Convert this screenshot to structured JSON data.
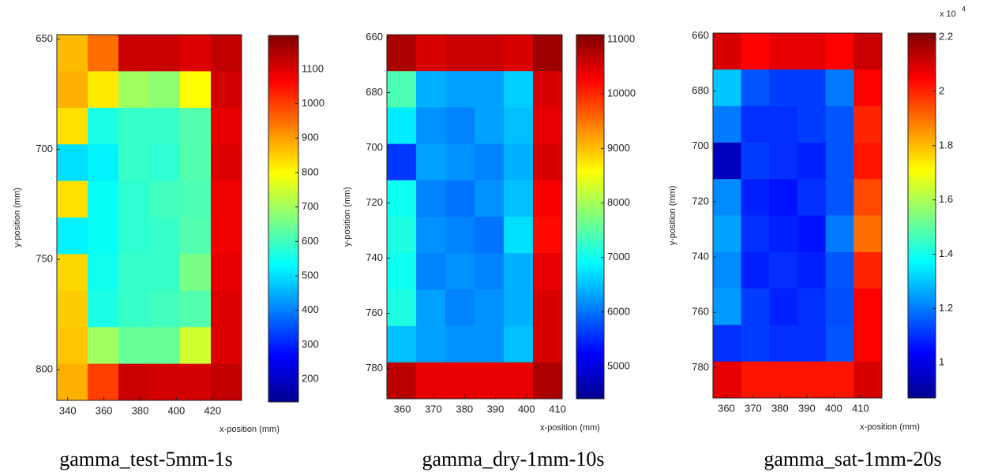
{
  "chart_data": [
    {
      "type": "heatmap",
      "title": "gamma_test-5mm-1s",
      "xlabel": "x-position (mm)",
      "ylabel": "y-position (mm)",
      "colormap": "jet",
      "xlim": [
        334,
        436
      ],
      "ylim": [
        648,
        814
      ],
      "xticks": [
        340,
        360,
        380,
        400,
        420
      ],
      "yticks": [
        650,
        700,
        750,
        800
      ],
      "clim": [
        134,
        1198
      ],
      "cticks": [
        200,
        300,
        400,
        500,
        600,
        700,
        800,
        900,
        1000,
        1100
      ],
      "z": [
        [
          870,
          950,
          1120,
          1120,
          1100,
          1130
        ],
        [
          880,
          820,
          700,
          680,
          800,
          1110
        ],
        [
          830,
          560,
          590,
          590,
          620,
          1090
        ],
        [
          500,
          520,
          590,
          580,
          620,
          1100
        ],
        [
          830,
          540,
          580,
          600,
          610,
          1080
        ],
        [
          520,
          540,
          580,
          590,
          620,
          1080
        ],
        [
          840,
          550,
          590,
          590,
          660,
          1090
        ],
        [
          850,
          560,
          590,
          600,
          620,
          1100
        ],
        [
          860,
          700,
          640,
          640,
          750,
          1100
        ],
        [
          880,
          1000,
          1120,
          1110,
          1110,
          1130
        ]
      ]
    },
    {
      "type": "heatmap",
      "title": "gamma_dry-1mm-10s",
      "xlabel": "x-position (mm)",
      "ylabel": "y-position (mm)",
      "colormap": "jet",
      "xlim": [
        355,
        411.5
      ],
      "ylim": [
        659,
        791
      ],
      "xticks": [
        360,
        370,
        380,
        390,
        400,
        410
      ],
      "yticks": [
        660,
        680,
        700,
        720,
        740,
        760,
        780
      ],
      "clim": [
        4408,
        11087
      ],
      "cticks": [
        5000,
        6000,
        7000,
        8000,
        9000,
        10000,
        11000
      ],
      "z": [
        [
          10800,
          10500,
          10600,
          10600,
          10500,
          10900
        ],
        [
          7400,
          6400,
          6300,
          6300,
          6600,
          10500
        ],
        [
          6800,
          6200,
          6100,
          6300,
          6500,
          10400
        ],
        [
          5600,
          6300,
          6200,
          6100,
          6400,
          10500
        ],
        [
          7000,
          6100,
          6000,
          6200,
          6500,
          10300
        ],
        [
          7100,
          6200,
          6100,
          6000,
          6700,
          10200
        ],
        [
          7000,
          6100,
          6200,
          6100,
          6400,
          10400
        ],
        [
          7100,
          6300,
          6100,
          6200,
          6400,
          10500
        ],
        [
          6500,
          6300,
          6200,
          6200,
          6500,
          10500
        ],
        [
          10700,
          10400,
          10400,
          10400,
          10400,
          10800
        ]
      ]
    },
    {
      "type": "heatmap",
      "title": "gamma_sat-1mm-20s",
      "xlabel": "x-position (mm)",
      "ylabel": "y-position (mm)",
      "colormap": "jet",
      "xlim": [
        355,
        418
      ],
      "ylim": [
        659,
        791
      ],
      "xticks": [
        360,
        370,
        380,
        390,
        400,
        410
      ],
      "yticks": [
        660,
        680,
        700,
        720,
        740,
        760,
        780
      ],
      "clim": [
        0.87,
        2.215
      ],
      "cticks": [
        1,
        1.2,
        1.4,
        1.6,
        1.8,
        2,
        2.2
      ],
      "colorbar_multiplier": "x 10",
      "colorbar_exponent": "4",
      "z": [
        [
          2.1,
          2.05,
          2.08,
          2.08,
          2.05,
          2.12
        ],
        [
          1.3,
          1.15,
          1.12,
          1.12,
          1.2,
          2.05
        ],
        [
          1.2,
          1.1,
          1.1,
          1.12,
          1.15,
          2.0
        ],
        [
          0.95,
          1.12,
          1.1,
          1.08,
          1.15,
          2.02
        ],
        [
          1.22,
          1.08,
          1.06,
          1.1,
          1.15,
          1.95
        ],
        [
          1.25,
          1.1,
          1.08,
          1.06,
          1.2,
          1.9
        ],
        [
          1.22,
          1.08,
          1.1,
          1.08,
          1.15,
          2.0
        ],
        [
          1.24,
          1.12,
          1.08,
          1.1,
          1.14,
          2.05
        ],
        [
          1.1,
          1.12,
          1.1,
          1.1,
          1.15,
          2.05
        ],
        [
          2.08,
          2.02,
          2.02,
          2.02,
          2.02,
          2.1
        ]
      ]
    }
  ]
}
